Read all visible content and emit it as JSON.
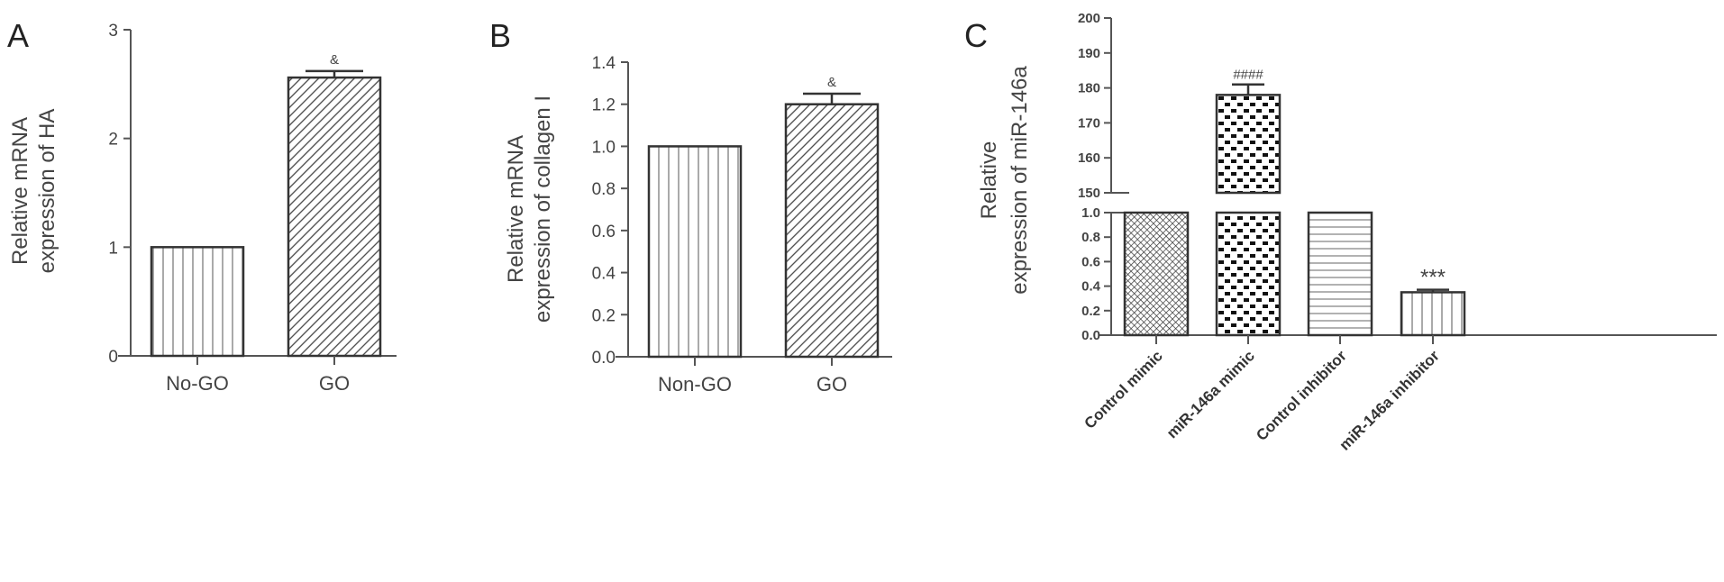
{
  "chart_data": [
    {
      "type": "bar",
      "panel": "A",
      "categories": [
        "No-GO",
        "GO"
      ],
      "values": [
        1.0,
        2.56
      ],
      "errors": [
        0,
        0.06
      ],
      "annotations": [
        "",
        "&"
      ],
      "patterns": [
        "vertical-lines",
        "diagonal-lines"
      ],
      "ylabel": [
        "Relative mRNA",
        "expression of HA"
      ],
      "ylim": [
        0,
        3
      ],
      "yticks": [
        "0",
        "1",
        "2",
        "3"
      ],
      "grid": false
    },
    {
      "type": "bar",
      "panel": "B",
      "categories": [
        "Non-GO",
        "GO"
      ],
      "values": [
        1.0,
        1.2
      ],
      "errors": [
        0,
        0.05
      ],
      "annotations": [
        "",
        "&"
      ],
      "patterns": [
        "vertical-lines",
        "diagonal-lines"
      ],
      "ylabel": [
        "Relative mRNA",
        "expression of collagen I"
      ],
      "ylim": [
        0,
        1.4
      ],
      "yticks": [
        "0.0",
        "0.2",
        "0.4",
        "0.6",
        "0.8",
        "1.0",
        "1.2",
        "1.4"
      ],
      "grid": false
    },
    {
      "type": "bar",
      "panel": "C",
      "categories": [
        "Control mimic",
        "miR-146a mimic",
        "Control inhibitor",
        "miR-146a inhibitor"
      ],
      "values": [
        1.0,
        178,
        1.0,
        0.35
      ],
      "errors": [
        0,
        3,
        0,
        0.02
      ],
      "annotations": [
        "",
        "####",
        "",
        "***"
      ],
      "patterns": [
        "fine-crosshatch",
        "checkerboard",
        "horizontal-lines",
        "vertical-lines"
      ],
      "ylabel": [
        "Relative",
        "expression of miR-146a"
      ],
      "ylim": [
        0,
        200
      ],
      "axis_break": [
        1.0,
        150
      ],
      "yticks_lower": [
        "0.0",
        "0.2",
        "0.4",
        "0.6",
        "0.8",
        "1.0"
      ],
      "yticks_upper": [
        "150",
        "160",
        "170",
        "180",
        "190",
        "200"
      ],
      "grid": false
    }
  ]
}
